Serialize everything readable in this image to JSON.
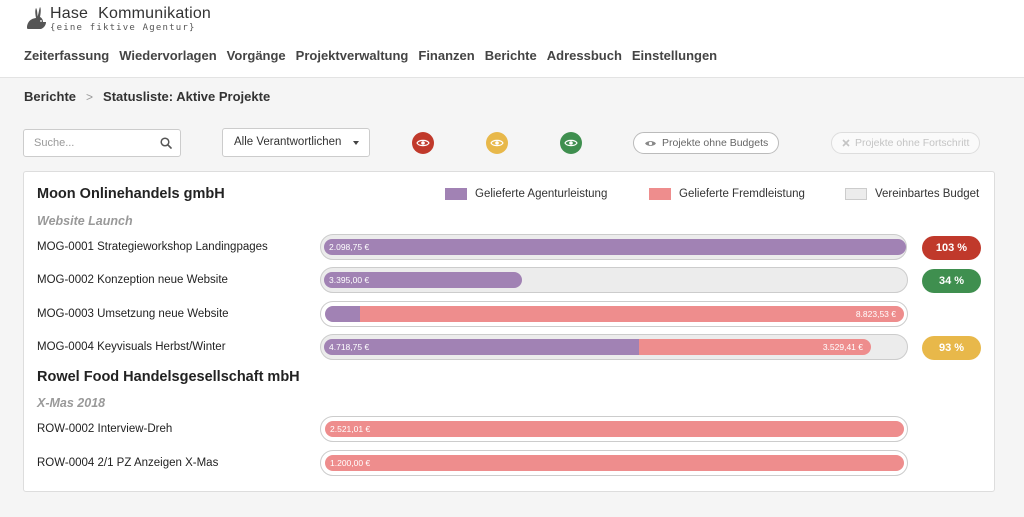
{
  "app": {
    "name_part1": "Hase",
    "name_part2": "Kommunikation",
    "tagline": "{eine fiktive Agentur}"
  },
  "nav": {
    "items": [
      {
        "label": "Zeiterfassung"
      },
      {
        "label": "Wiedervorlagen"
      },
      {
        "label": "Vorgänge"
      },
      {
        "label": "Projektverwaltung"
      },
      {
        "label": "Finanzen"
      },
      {
        "label": "Berichte"
      },
      {
        "label": "Adressbuch"
      },
      {
        "label": "Einstellungen"
      }
    ]
  },
  "breadcrumb": {
    "parent": "Berichte",
    "separator": ">",
    "current": "Statusliste: Aktive Projekte"
  },
  "filters": {
    "search_placeholder": "Suche...",
    "responsible_selected": "Alle Verantwortlichen",
    "status_red_color": "#c0392b",
    "status_yellow_color": "#e8b84a",
    "status_green_color": "#3f8f4f",
    "projects_without_budgets": "Projekte ohne Budgets",
    "projects_without_progress": "Projekte ohne Fortschritt"
  },
  "legend": {
    "agency": {
      "label": "Gelieferte Agenturleistung",
      "color": "#a182b4"
    },
    "external": {
      "label": "Gelieferte Fremdleistung",
      "color": "#ee8d8d"
    },
    "budget": {
      "label": "Vereinbartes Budget",
      "color": "#ececec"
    }
  },
  "clients": [
    {
      "name": "Moon Onlinehandels gmbH",
      "project": "Website Launch",
      "tasks": [
        {
          "label": "MOG-0001 Strategieworkshop Landingpages",
          "agency_value": "2.098,75 €",
          "external_value": "",
          "percent": "103 %",
          "status": "red"
        },
        {
          "label": "MOG-0002 Konzeption neue Website",
          "agency_value": "3.395,00 €",
          "external_value": "",
          "percent": "34 %",
          "status": "green"
        },
        {
          "label": "MOG-0003 Umsetzung neue Website",
          "agency_value": "",
          "external_value": "8.823,53 €",
          "percent": "",
          "status": "none"
        },
        {
          "label": "MOG-0004 Keyvisuals Herbst/Winter",
          "agency_value": "4.718,75 €",
          "external_value": "3.529,41 €",
          "percent": "93 %",
          "status": "yellow"
        }
      ]
    },
    {
      "name": "Rowel Food Handelsgesellschaft mbH",
      "project": "X-Mas 2018",
      "tasks": [
        {
          "label": "ROW-0002 Interview-Dreh",
          "agency_value": "",
          "external_value": "2.521,01 €",
          "percent": "",
          "status": "none"
        },
        {
          "label": "ROW-0004 2/1 PZ Anzeigen X-Mas",
          "agency_value": "",
          "external_value": "1.200,00 €",
          "percent": "",
          "status": "none"
        }
      ]
    }
  ]
}
